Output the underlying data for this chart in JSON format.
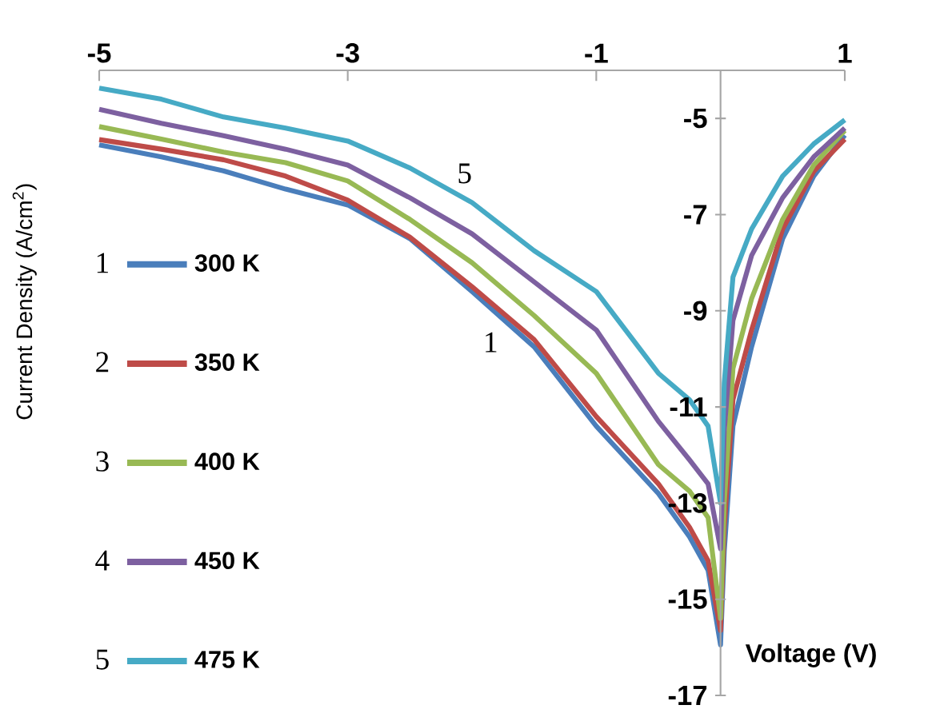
{
  "chart_data": {
    "type": "line",
    "xlabel": "Voltage (V)",
    "ylabel": "Current Density (A/cm$^{2}$)",
    "x": [
      -5,
      -4.5,
      -4,
      -3.5,
      -3,
      -2.5,
      -2,
      -1.5,
      -1,
      -0.5,
      -0.25,
      -0.1,
      0,
      0.03,
      0.1,
      0.25,
      0.5,
      0.75,
      1
    ],
    "series": [
      {
        "name": "300 K",
        "color": "#4a7ebb",
        "values": [
          -5.55,
          -5.8,
          -6.09,
          -6.47,
          -6.8,
          -7.5,
          -8.6,
          -9.75,
          -11.4,
          -12.8,
          -13.7,
          -14.4,
          -15.95,
          -14,
          -11.4,
          -9.75,
          -7.5,
          -6.2,
          -5.35
        ]
      },
      {
        "name": "350 K",
        "color": "#be4b48",
        "values": [
          -5.44,
          -5.64,
          -5.86,
          -6.2,
          -6.7,
          -7.47,
          -8.5,
          -9.6,
          -11.2,
          -12.6,
          -13.5,
          -14.2,
          -15.65,
          -13.5,
          -10.85,
          -9.4,
          -7.3,
          -6.1,
          -5.43
        ]
      },
      {
        "name": "400 K",
        "color": "#98b954",
        "values": [
          -5.17,
          -5.43,
          -5.7,
          -5.92,
          -6.3,
          -7.1,
          -8.0,
          -9.1,
          -10.3,
          -12.2,
          -12.75,
          -13.3,
          -15.4,
          -13,
          -10.2,
          -8.75,
          -7.1,
          -5.97,
          -5.25
        ]
      },
      {
        "name": "450 K",
        "color": "#7d60a0",
        "values": [
          -4.81,
          -5.1,
          -5.36,
          -5.64,
          -5.97,
          -6.65,
          -7.4,
          -8.4,
          -9.4,
          -11.3,
          -12.1,
          -12.6,
          -13.95,
          -11.5,
          -9.2,
          -7.85,
          -6.65,
          -5.8,
          -5.2
        ]
      },
      {
        "name": "475  K",
        "color": "#46aac5",
        "values": [
          -4.37,
          -4.6,
          -4.97,
          -5.2,
          -5.47,
          -6.03,
          -6.75,
          -7.75,
          -8.6,
          -10.3,
          -10.85,
          -11.4,
          -13.0,
          -10.5,
          -8.3,
          -7.3,
          -6.2,
          -5.53,
          -5.03
        ]
      }
    ],
    "xlim": [
      -5,
      1
    ],
    "xticks": [
      -5,
      -3,
      -1,
      1
    ],
    "ylim": [
      -17,
      -4
    ],
    "yticks": [
      -17,
      -15,
      -13,
      -11,
      -9,
      -7,
      -5
    ],
    "legend": "left",
    "grid": false,
    "marker": "none",
    "line_style": "solid",
    "annotations": [
      "1",
      "2",
      "3",
      "4",
      "5",
      "5",
      "1"
    ]
  }
}
